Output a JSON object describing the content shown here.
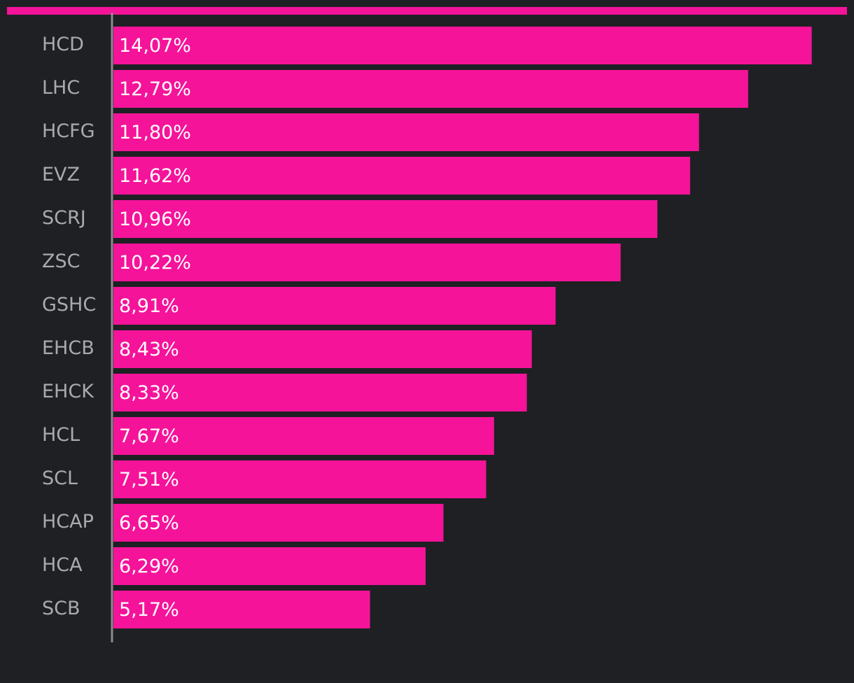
{
  "colors": {
    "background": "#1f2023",
    "bar": "#f5139a",
    "accent_rule": "#f5139a",
    "axis": "#8a8b8e",
    "category_text": "#a9aaad",
    "value_text": "#ffffff"
  },
  "chart_data": {
    "type": "bar",
    "orientation": "horizontal",
    "title": "",
    "xlabel": "",
    "ylabel": "",
    "unit": "%",
    "decimal_separator": ",",
    "xlim": [
      0,
      14.5
    ],
    "grid": false,
    "legend": "none",
    "categories": [
      "HCD",
      "LHC",
      "HCFG",
      "EVZ",
      "SCRJ",
      "ZSC",
      "GSHC",
      "EHCB",
      "EHCK",
      "HCL",
      "SCL",
      "HCAP",
      "HCA",
      "SCB"
    ],
    "values": [
      14.07,
      12.79,
      11.8,
      11.62,
      10.96,
      10.22,
      8.91,
      8.43,
      8.33,
      7.67,
      7.51,
      6.65,
      6.29,
      5.17
    ],
    "value_labels": [
      "14,07%",
      "12,79%",
      "11,80%",
      "11,62%",
      "10,96%",
      "10,22%",
      "8,91%",
      "8,43%",
      "8,33%",
      "7,67%",
      "7,51%",
      "6,65%",
      "6,29%",
      "5,17%"
    ]
  }
}
